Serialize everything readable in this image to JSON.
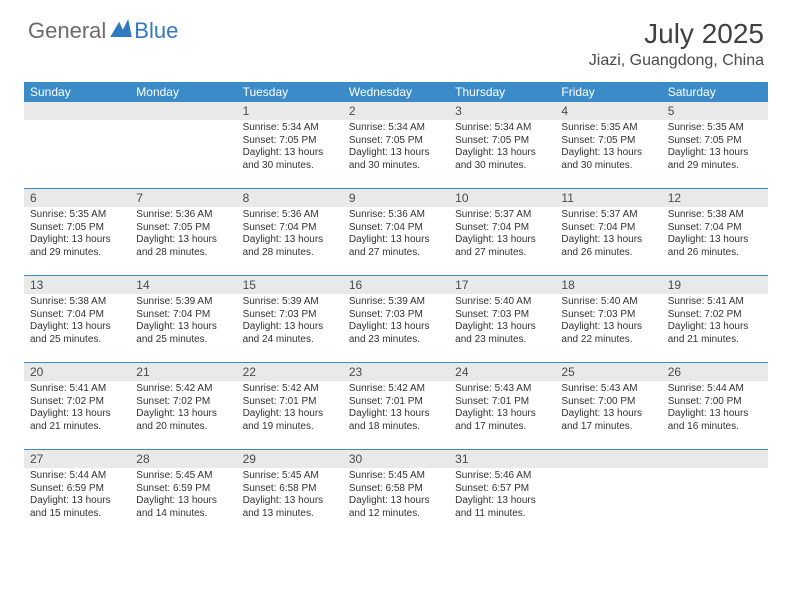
{
  "brand": {
    "general": "General",
    "blue": "Blue"
  },
  "title": "July 2025",
  "location": "Jiazi, Guangdong, China",
  "colors": {
    "header_bg": "#3b8bc9",
    "daynum_bg": "#e9e9e9",
    "text": "#333333",
    "brand_grey": "#6b6b6b",
    "brand_blue": "#2f7ac0"
  },
  "weekdays": [
    "Sunday",
    "Monday",
    "Tuesday",
    "Wednesday",
    "Thursday",
    "Friday",
    "Saturday"
  ],
  "weeks": [
    [
      null,
      null,
      {
        "n": "1",
        "sr": "5:34 AM",
        "ss": "7:05 PM",
        "dl": "13 hours and 30 minutes."
      },
      {
        "n": "2",
        "sr": "5:34 AM",
        "ss": "7:05 PM",
        "dl": "13 hours and 30 minutes."
      },
      {
        "n": "3",
        "sr": "5:34 AM",
        "ss": "7:05 PM",
        "dl": "13 hours and 30 minutes."
      },
      {
        "n": "4",
        "sr": "5:35 AM",
        "ss": "7:05 PM",
        "dl": "13 hours and 30 minutes."
      },
      {
        "n": "5",
        "sr": "5:35 AM",
        "ss": "7:05 PM",
        "dl": "13 hours and 29 minutes."
      }
    ],
    [
      {
        "n": "6",
        "sr": "5:35 AM",
        "ss": "7:05 PM",
        "dl": "13 hours and 29 minutes."
      },
      {
        "n": "7",
        "sr": "5:36 AM",
        "ss": "7:05 PM",
        "dl": "13 hours and 28 minutes."
      },
      {
        "n": "8",
        "sr": "5:36 AM",
        "ss": "7:04 PM",
        "dl": "13 hours and 28 minutes."
      },
      {
        "n": "9",
        "sr": "5:36 AM",
        "ss": "7:04 PM",
        "dl": "13 hours and 27 minutes."
      },
      {
        "n": "10",
        "sr": "5:37 AM",
        "ss": "7:04 PM",
        "dl": "13 hours and 27 minutes."
      },
      {
        "n": "11",
        "sr": "5:37 AM",
        "ss": "7:04 PM",
        "dl": "13 hours and 26 minutes."
      },
      {
        "n": "12",
        "sr": "5:38 AM",
        "ss": "7:04 PM",
        "dl": "13 hours and 26 minutes."
      }
    ],
    [
      {
        "n": "13",
        "sr": "5:38 AM",
        "ss": "7:04 PM",
        "dl": "13 hours and 25 minutes."
      },
      {
        "n": "14",
        "sr": "5:39 AM",
        "ss": "7:04 PM",
        "dl": "13 hours and 25 minutes."
      },
      {
        "n": "15",
        "sr": "5:39 AM",
        "ss": "7:03 PM",
        "dl": "13 hours and 24 minutes."
      },
      {
        "n": "16",
        "sr": "5:39 AM",
        "ss": "7:03 PM",
        "dl": "13 hours and 23 minutes."
      },
      {
        "n": "17",
        "sr": "5:40 AM",
        "ss": "7:03 PM",
        "dl": "13 hours and 23 minutes."
      },
      {
        "n": "18",
        "sr": "5:40 AM",
        "ss": "7:03 PM",
        "dl": "13 hours and 22 minutes."
      },
      {
        "n": "19",
        "sr": "5:41 AM",
        "ss": "7:02 PM",
        "dl": "13 hours and 21 minutes."
      }
    ],
    [
      {
        "n": "20",
        "sr": "5:41 AM",
        "ss": "7:02 PM",
        "dl": "13 hours and 21 minutes."
      },
      {
        "n": "21",
        "sr": "5:42 AM",
        "ss": "7:02 PM",
        "dl": "13 hours and 20 minutes."
      },
      {
        "n": "22",
        "sr": "5:42 AM",
        "ss": "7:01 PM",
        "dl": "13 hours and 19 minutes."
      },
      {
        "n": "23",
        "sr": "5:42 AM",
        "ss": "7:01 PM",
        "dl": "13 hours and 18 minutes."
      },
      {
        "n": "24",
        "sr": "5:43 AM",
        "ss": "7:01 PM",
        "dl": "13 hours and 17 minutes."
      },
      {
        "n": "25",
        "sr": "5:43 AM",
        "ss": "7:00 PM",
        "dl": "13 hours and 17 minutes."
      },
      {
        "n": "26",
        "sr": "5:44 AM",
        "ss": "7:00 PM",
        "dl": "13 hours and 16 minutes."
      }
    ],
    [
      {
        "n": "27",
        "sr": "5:44 AM",
        "ss": "6:59 PM",
        "dl": "13 hours and 15 minutes."
      },
      {
        "n": "28",
        "sr": "5:45 AM",
        "ss": "6:59 PM",
        "dl": "13 hours and 14 minutes."
      },
      {
        "n": "29",
        "sr": "5:45 AM",
        "ss": "6:58 PM",
        "dl": "13 hours and 13 minutes."
      },
      {
        "n": "30",
        "sr": "5:45 AM",
        "ss": "6:58 PM",
        "dl": "13 hours and 12 minutes."
      },
      {
        "n": "31",
        "sr": "5:46 AM",
        "ss": "6:57 PM",
        "dl": "13 hours and 11 minutes."
      },
      null,
      null
    ]
  ],
  "labels": {
    "sunrise": "Sunrise:",
    "sunset": "Sunset:",
    "daylight": "Daylight:"
  }
}
